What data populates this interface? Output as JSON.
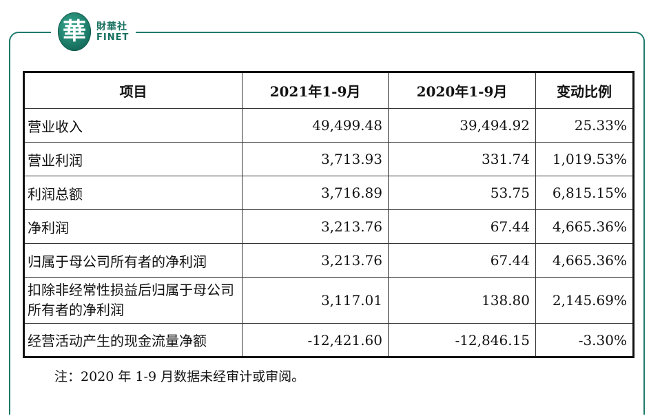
{
  "logo": {
    "mark": "華",
    "name_cn": "財華社",
    "name_en": "FINET"
  },
  "table": {
    "headers": [
      "项目",
      "2021年1-9月",
      "2020年1-9月",
      "变动比例"
    ],
    "rows": [
      {
        "item": "营业收入",
        "y2021": "49,499.48",
        "y2020": "39,494.92",
        "change": "25.33%"
      },
      {
        "item": "营业利润",
        "y2021": "3,713.93",
        "y2020": "331.74",
        "change": "1,019.53%"
      },
      {
        "item": "利润总额",
        "y2021": "3,716.89",
        "y2020": "53.75",
        "change": "6,815.15%"
      },
      {
        "item": "净利润",
        "y2021": "3,213.76",
        "y2020": "67.44",
        "change": "4,665.36%"
      },
      {
        "item": "归属于母公司所有者的净利润",
        "y2021": "3,213.76",
        "y2020": "67.44",
        "change": "4,665.36%"
      },
      {
        "item": "扣除非经常性损益后归属于母公司所有者的净利润",
        "y2021": "3,117.01",
        "y2020": "138.80",
        "change": "2,145.69%"
      },
      {
        "item": "经营活动产生的现金流量净额",
        "y2021": "-12,421.60",
        "y2020": "-12,846.15",
        "change": "-3.30%"
      }
    ]
  },
  "note": "注：2020 年 1-9 月数据未经审计或审阅。",
  "colors": {
    "brand": "#1f7a6e"
  }
}
